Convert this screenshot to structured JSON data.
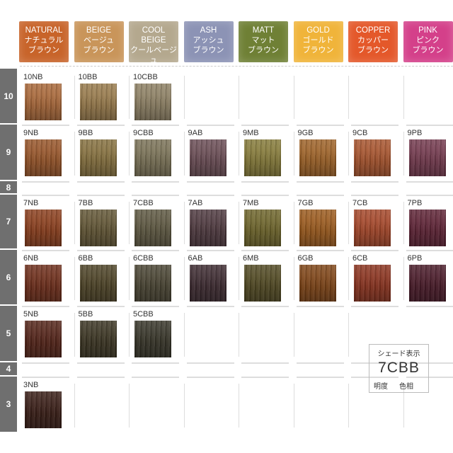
{
  "levels": [
    "10",
    "9",
    "8",
    "7",
    "6",
    "5",
    "4",
    "3"
  ],
  "columns": [
    {
      "en": "NATURAL",
      "jp1": "ナチュラル",
      "jp2": "ブラウン",
      "color": "#c8642a"
    },
    {
      "en": "BEIGE",
      "jp1": "ベージュ",
      "jp2": "ブラウン",
      "color": "#c9955a"
    },
    {
      "en": "COOL BEIGE",
      "jp1": "クールベージュ",
      "jp2": "ブラウン",
      "color": "#b4a88e"
    },
    {
      "en": "ASH",
      "jp1": "アッシュ",
      "jp2": "ブラウン",
      "color": "#8c93b5"
    },
    {
      "en": "MATT",
      "jp1": "マット",
      "jp2": "ブラウン",
      "color": "#6f8035"
    },
    {
      "en": "GOLD",
      "jp1": "ゴールド",
      "jp2": "ブラウン",
      "color": "#f0b43a"
    },
    {
      "en": "COPPER",
      "jp1": "カッパー",
      "jp2": "ブラウン",
      "color": "#e4582a"
    },
    {
      "en": "PINK",
      "jp1": "ピンク",
      "jp2": "ブラウン",
      "color": "#d4408a"
    }
  ],
  "rows": [
    {
      "level": "10",
      "cells": [
        {
          "code": "10NB",
          "color": "#a8683a"
        },
        {
          "code": "10BB",
          "color": "#977a4c"
        },
        {
          "code": "10CBB",
          "color": "#8d8064"
        },
        null,
        null,
        null,
        null,
        null
      ]
    },
    {
      "level": "9",
      "cells": [
        {
          "code": "9NB",
          "color": "#96552a"
        },
        {
          "code": "9BB",
          "color": "#85703f"
        },
        {
          "code": "9CBB",
          "color": "#7a7257"
        },
        {
          "code": "9AB",
          "color": "#6a4d55"
        },
        {
          "code": "9MB",
          "color": "#857a3a"
        },
        {
          "code": "9GB",
          "color": "#9d6228"
        },
        {
          "code": "9CB",
          "color": "#a6542e"
        },
        {
          "code": "9PB",
          "color": "#733a4e"
        }
      ]
    },
    {
      "level": "8",
      "cells": []
    },
    {
      "level": "7",
      "cells": [
        {
          "code": "7NB",
          "color": "#8a3f1e"
        },
        {
          "code": "7BB",
          "color": "#625636"
        },
        {
          "code": "7CBB",
          "color": "#5e5842"
        },
        {
          "code": "7AB",
          "color": "#4f3a40"
        },
        {
          "code": "7MB",
          "color": "#6e652c"
        },
        {
          "code": "7GB",
          "color": "#9a5a1e"
        },
        {
          "code": "7CB",
          "color": "#a4472a"
        },
        {
          "code": "7PB",
          "color": "#5e2436"
        }
      ]
    },
    {
      "level": "6",
      "cells": [
        {
          "code": "6NB",
          "color": "#6e2f1c"
        },
        {
          "code": "6BB",
          "color": "#4e4428"
        },
        {
          "code": "6CBB",
          "color": "#4a4534"
        },
        {
          "code": "6AB",
          "color": "#3e2c32"
        },
        {
          "code": "6MB",
          "color": "#524a24"
        },
        {
          "code": "6GB",
          "color": "#7e4518"
        },
        {
          "code": "6CB",
          "color": "#8a3420"
        },
        {
          "code": "6PB",
          "color": "#4a1c2a"
        }
      ]
    },
    {
      "level": "5",
      "cells": [
        {
          "code": "5NB",
          "color": "#54251a"
        },
        {
          "code": "5BB",
          "color": "#3c3624"
        },
        {
          "code": "5CBB",
          "color": "#38362a"
        },
        null,
        null,
        null,
        null,
        null
      ]
    },
    {
      "level": "4",
      "cells": []
    },
    {
      "level": "3",
      "cells": [
        {
          "code": "3NB",
          "color": "#3a1f18"
        },
        null,
        null,
        null,
        null,
        null,
        null,
        null
      ]
    }
  ],
  "legend": {
    "title": "シェード表示",
    "example": "7CBB",
    "label_level": "明度",
    "label_hue": "色相"
  }
}
